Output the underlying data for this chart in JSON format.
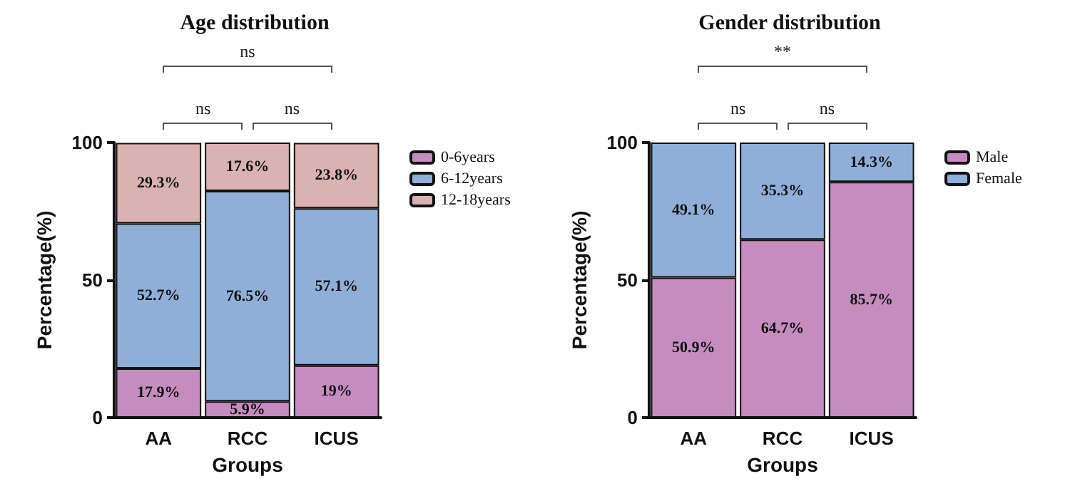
{
  "chart_data": [
    {
      "type": "bar",
      "title": "Age distribution",
      "xlabel": "Groups",
      "ylabel": "Percentage(%)",
      "categories": [
        "AA",
        "RCC",
        "ICUS"
      ],
      "stacked": true,
      "ylim": [
        0,
        100
      ],
      "yticks": [
        0,
        50,
        100
      ],
      "grid": false,
      "legend": "right",
      "annotations": [
        "ns",
        "ns",
        "ns"
      ],
      "series": [
        {
          "name": "0-6years",
          "color": "#c58cbe",
          "values": [
            17.9,
            5.9,
            19
          ],
          "value_labels": [
            "17.9%",
            "5.9%",
            "19%"
          ]
        },
        {
          "name": "6-12years",
          "color": "#8fafd9",
          "values": [
            52.7,
            76.5,
            57.1
          ],
          "value_labels": [
            "52.7%",
            "76.5%",
            "57.1%"
          ]
        },
        {
          "name": "12-18years",
          "color": "#d9b2b1",
          "values": [
            29.3,
            17.6,
            23.8
          ],
          "value_labels": [
            "29.3%",
            "17.6%",
            "23.8%"
          ]
        }
      ]
    },
    {
      "type": "bar",
      "title": "Gender distribution",
      "xlabel": "Groups",
      "ylabel": "Percentage(%)",
      "categories": [
        "AA",
        "RCC",
        "ICUS"
      ],
      "stacked": true,
      "ylim": [
        0,
        100
      ],
      "yticks": [
        0,
        50,
        100
      ],
      "grid": false,
      "legend": "right",
      "annotations": [
        "**",
        "ns",
        "ns"
      ],
      "series": [
        {
          "name": "Male",
          "color": "#c58cbe",
          "values": [
            50.9,
            64.7,
            85.7
          ],
          "value_labels": [
            "50.9%",
            "64.7%",
            "85.7%"
          ]
        },
        {
          "name": "Female",
          "color": "#8fafd9",
          "values": [
            49.1,
            35.3,
            14.3
          ],
          "value_labels": [
            "49.1%",
            "35.3%",
            "14.3%"
          ]
        }
      ]
    }
  ]
}
